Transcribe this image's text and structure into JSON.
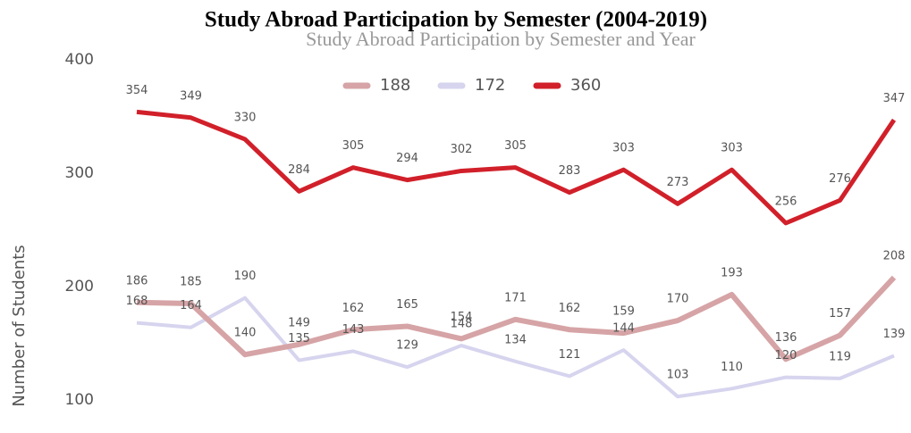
{
  "chart_data": {
    "type": "line",
    "title": "Study Abroad Participation by Semester (2004-2019)",
    "subtitle": "Study Abroad Participation by Semester and Year",
    "y_label": "Number of Students",
    "categories": [
      null,
      null,
      null,
      null,
      null,
      null,
      null,
      null,
      null,
      null,
      null,
      null,
      null,
      null,
      null
    ],
    "series": [
      {
        "name": "188",
        "color": "#d6a4a6",
        "values": [
          186,
          185,
          140,
          149,
          162,
          165,
          154,
          171,
          162,
          159,
          170,
          193,
          136,
          157,
          208
        ]
      },
      {
        "name": "172",
        "color": "#d6d4ee",
        "values": [
          168,
          164,
          190,
          135,
          143,
          129,
          148,
          134,
          121,
          144,
          103,
          110,
          120,
          119,
          139
        ]
      },
      {
        "name": "360",
        "color": "#d1202a",
        "values": [
          354,
          349,
          330,
          284,
          305,
          294,
          302,
          305,
          283,
          303,
          273,
          303,
          256,
          276,
          347
        ]
      }
    ],
    "ylim": [
      100,
      400
    ],
    "yticks": [
      100,
      200,
      300,
      400
    ],
    "grid": false,
    "legend": "top"
  }
}
